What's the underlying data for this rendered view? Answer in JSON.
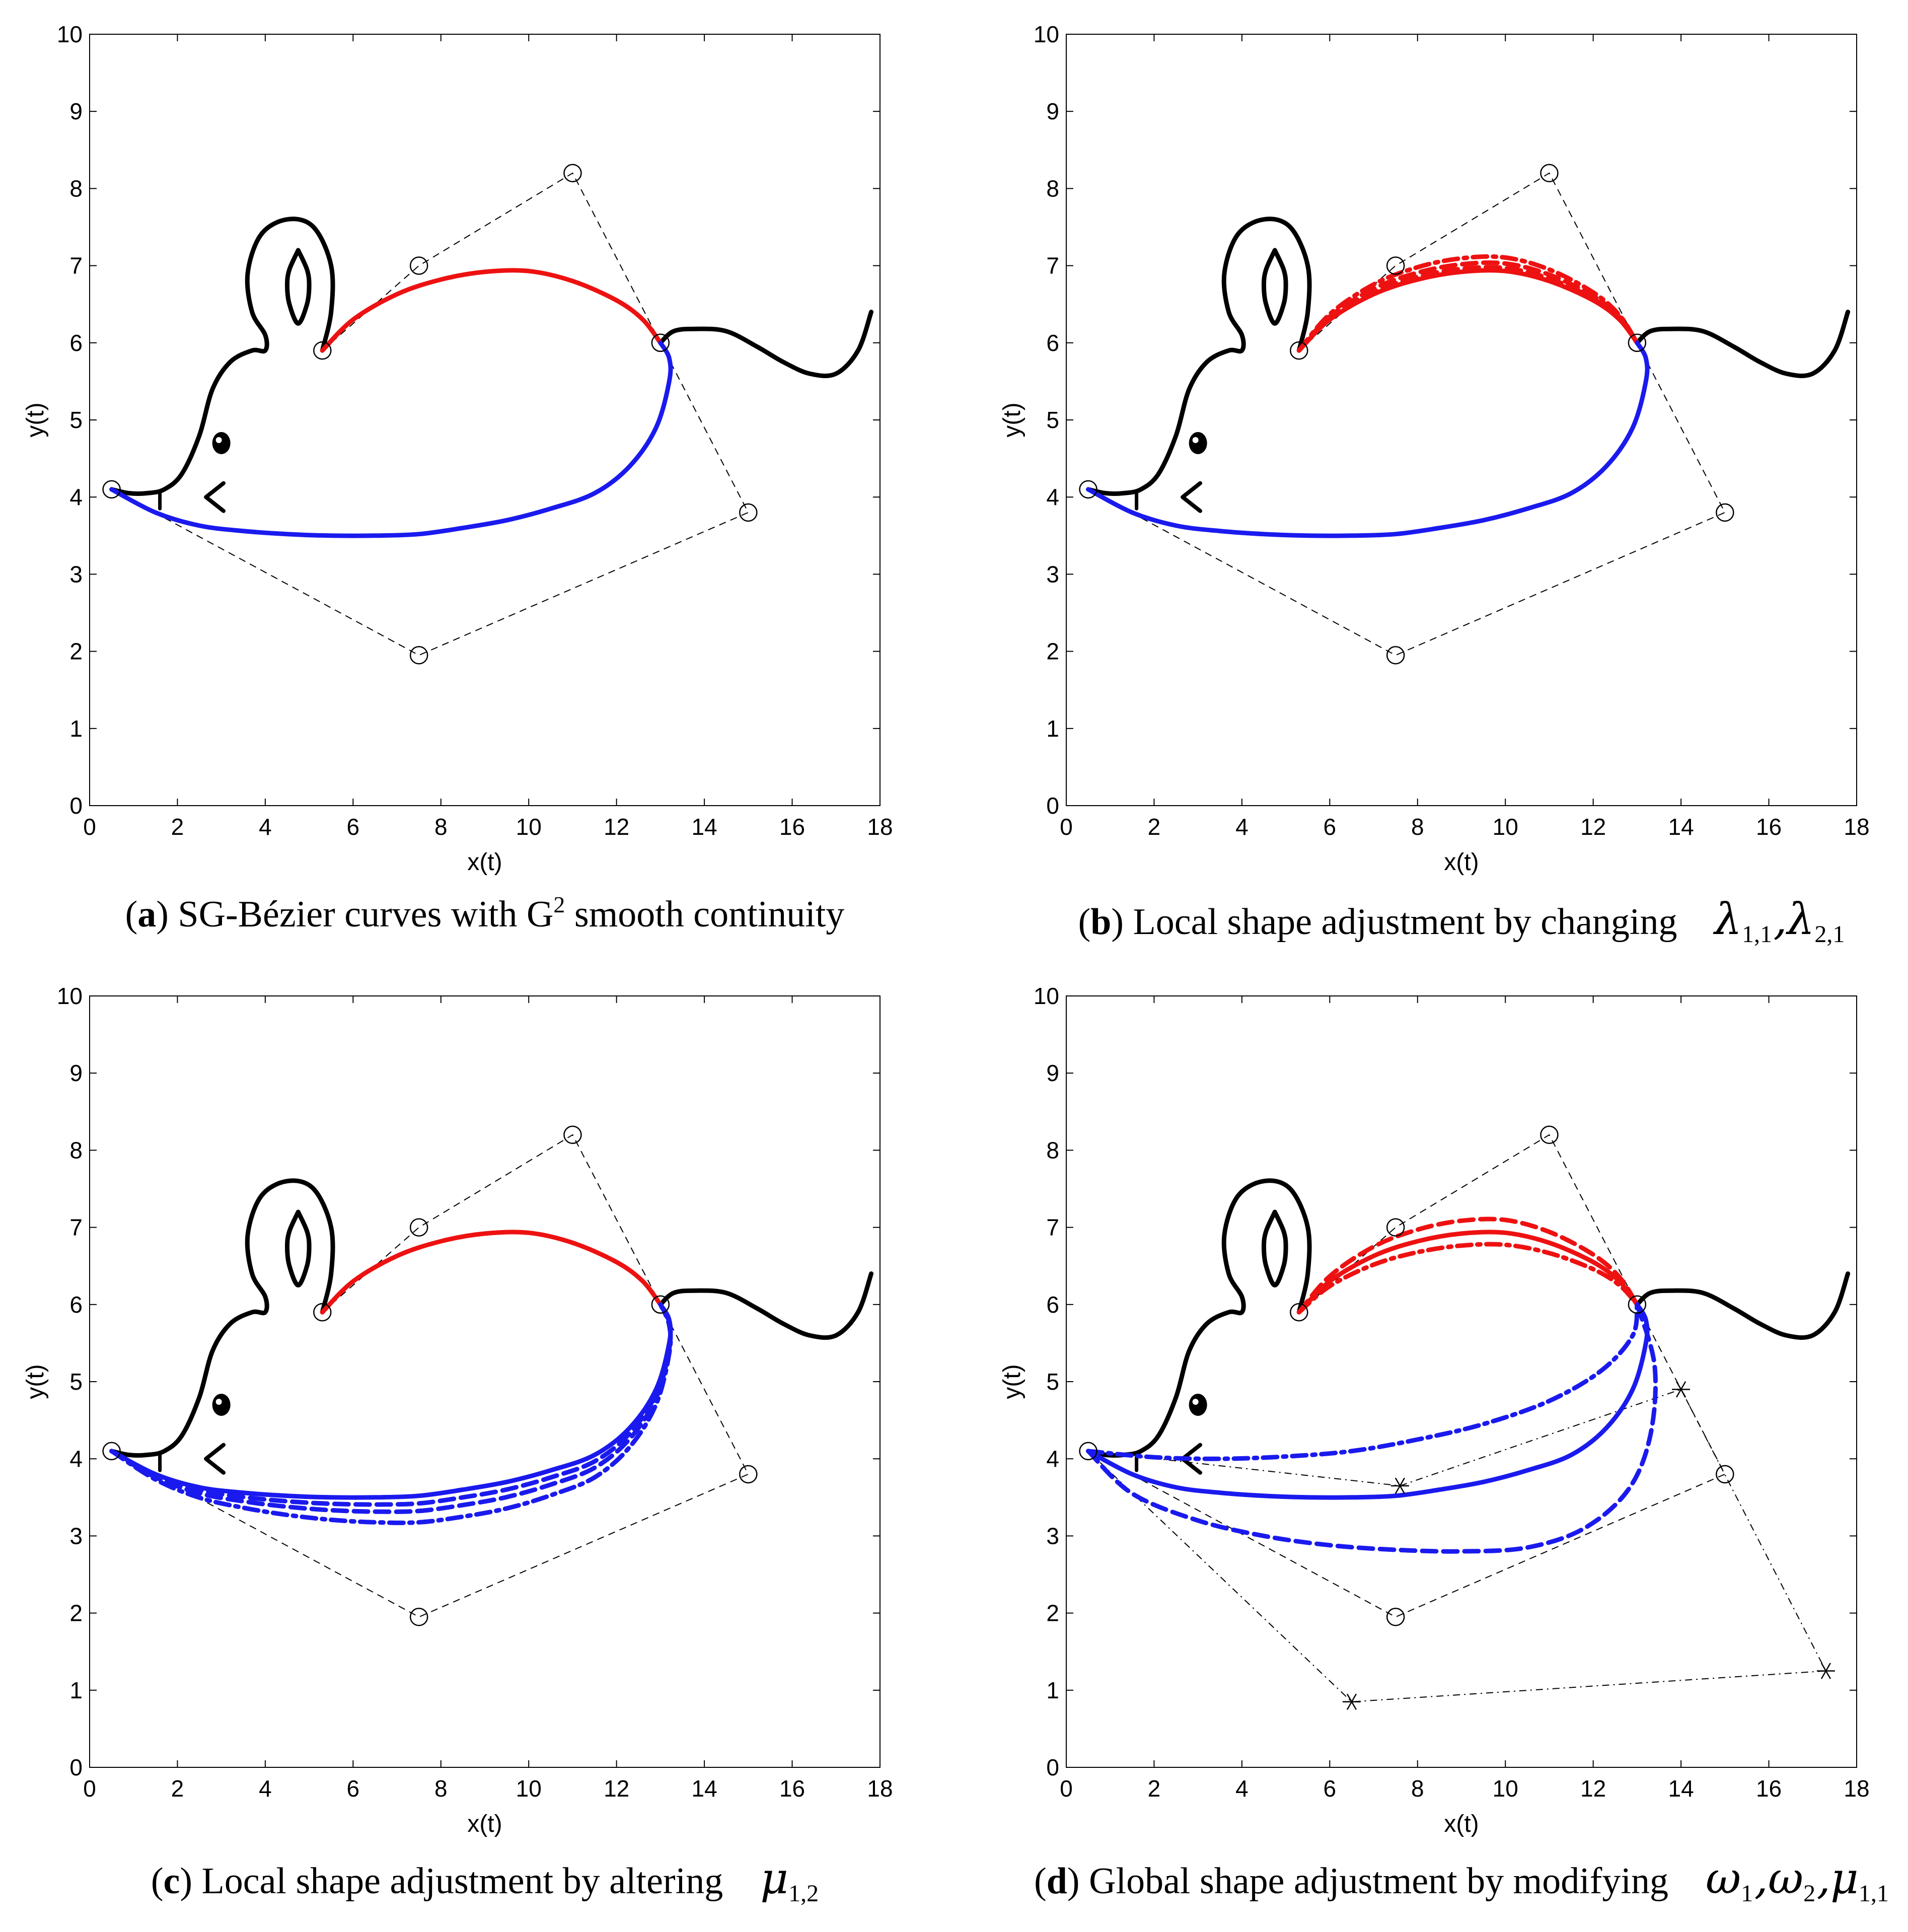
{
  "figure": {
    "panels_label": "SG-Bezier mouse figure"
  },
  "chart_data": [
    {
      "type": "line",
      "panel": "a",
      "caption_tag": "a",
      "caption_text": " SG-Bézier curves with G",
      "caption_sup": "2",
      "caption_tail": " smooth continuity",
      "xlabel": "x(t)",
      "ylabel": "y(t)",
      "xlim": [
        0,
        18
      ],
      "ylim": [
        0,
        10
      ],
      "xticks": [
        "0",
        "2",
        "4",
        "6",
        "8",
        "10",
        "12",
        "14",
        "16",
        "18"
      ],
      "yticks": [
        "0",
        "1",
        "2",
        "3",
        "4",
        "5",
        "6",
        "7",
        "8",
        "9",
        "10"
      ],
      "variant": "base"
    },
    {
      "type": "line",
      "panel": "b",
      "caption_tag": "b",
      "caption_text": " Local shape adjustment by changing",
      "caption_math": [
        {
          "sym": "λ",
          "sub": "1,1"
        },
        {
          "sym": ",",
          "sub": ""
        },
        {
          "sym": "λ",
          "sub": "2,1"
        }
      ],
      "xlabel": "x(t)",
      "ylabel": "y(t)",
      "xlim": [
        0,
        18
      ],
      "ylim": [
        0,
        10
      ],
      "xticks": [
        "0",
        "2",
        "4",
        "6",
        "8",
        "10",
        "12",
        "14",
        "16",
        "18"
      ],
      "yticks": [
        "0",
        "1",
        "2",
        "3",
        "4",
        "5",
        "6",
        "7",
        "8",
        "9",
        "10"
      ],
      "variant": "lambda"
    },
    {
      "type": "line",
      "panel": "c",
      "caption_tag": "c",
      "caption_text": " Local shape adjustment by altering",
      "caption_math": [
        {
          "sym": "μ",
          "sub": "1,2"
        }
      ],
      "xlabel": "x(t)",
      "ylabel": "y(t)",
      "xlim": [
        0,
        18
      ],
      "ylim": [
        0,
        10
      ],
      "xticks": [
        "0",
        "2",
        "4",
        "6",
        "8",
        "10",
        "12",
        "14",
        "16",
        "18"
      ],
      "yticks": [
        "0",
        "1",
        "2",
        "3",
        "4",
        "5",
        "6",
        "7",
        "8",
        "9",
        "10"
      ],
      "variant": "mu"
    },
    {
      "type": "line",
      "panel": "d",
      "caption_tag": "d",
      "caption_text": " Global shape adjustment by modifying",
      "caption_math": [
        {
          "sym": "ω",
          "sub": "1"
        },
        {
          "sym": ",",
          "sub": ""
        },
        {
          "sym": "ω",
          "sub": "2"
        },
        {
          "sym": ",",
          "sub": ""
        },
        {
          "sym": "μ",
          "sub": "1,1"
        }
      ],
      "xlabel": "x(t)",
      "ylabel": "y(t)",
      "xlim": [
        0,
        18
      ],
      "ylim": [
        0,
        10
      ],
      "xticks": [
        "0",
        "2",
        "4",
        "6",
        "8",
        "10",
        "12",
        "14",
        "16",
        "18"
      ],
      "yticks": [
        "0",
        "1",
        "2",
        "3",
        "4",
        "5",
        "6",
        "7",
        "8",
        "9",
        "10"
      ],
      "variant": "global"
    }
  ],
  "geometry_data": {
    "control_polygon_upper": [
      [
        5.3,
        5.9
      ],
      [
        7.5,
        7.0
      ],
      [
        11.0,
        8.2
      ],
      [
        13.0,
        6.0
      ]
    ],
    "control_polygon_lower": [
      [
        0.5,
        4.1
      ],
      [
        7.5,
        1.95
      ],
      [
        15.0,
        3.8
      ],
      [
        13.0,
        6.0
      ]
    ],
    "control_polygon_star": [
      [
        0.5,
        4.1
      ],
      [
        6.5,
        0.85
      ],
      [
        17.3,
        1.25
      ],
      [
        14.0,
        4.9
      ],
      [
        7.6,
        3.65
      ],
      [
        0.5,
        4.1
      ]
    ],
    "star_points": [
      [
        6.5,
        0.85
      ],
      [
        17.3,
        1.25
      ],
      [
        14.0,
        4.9
      ],
      [
        7.6,
        3.65
      ]
    ],
    "red_curve": [
      [
        5.3,
        5.9
      ],
      [
        6.0,
        6.3
      ],
      [
        7.0,
        6.63
      ],
      [
        8.0,
        6.82
      ],
      [
        9.0,
        6.92
      ],
      [
        10.0,
        6.93
      ],
      [
        11.0,
        6.8
      ],
      [
        12.0,
        6.55
      ],
      [
        12.6,
        6.3
      ],
      [
        13.0,
        6.0
      ]
    ],
    "blue_curve": [
      [
        0.5,
        4.1
      ],
      [
        1.5,
        3.8
      ],
      [
        2.5,
        3.63
      ],
      [
        3.5,
        3.56
      ],
      [
        4.5,
        3.52
      ],
      [
        5.5,
        3.5
      ],
      [
        6.5,
        3.5
      ],
      [
        7.5,
        3.52
      ],
      [
        8.5,
        3.6
      ],
      [
        9.5,
        3.7
      ],
      [
        10.5,
        3.85
      ],
      [
        11.5,
        4.05
      ],
      [
        12.3,
        4.4
      ],
      [
        12.9,
        4.9
      ],
      [
        13.2,
        5.5
      ],
      [
        13.2,
        5.8
      ],
      [
        13.0,
        6.0
      ]
    ],
    "mouse_outline": [
      [
        0.5,
        4.1
      ],
      [
        0.9,
        4.05
      ],
      [
        1.3,
        4.05
      ],
      [
        1.7,
        4.1
      ],
      [
        2.1,
        4.3
      ],
      [
        2.5,
        4.8
      ],
      [
        2.8,
        5.4
      ],
      [
        3.2,
        5.75
      ],
      [
        3.7,
        5.9
      ],
      [
        4.0,
        5.9
      ],
      [
        4.0,
        6.1
      ],
      [
        3.7,
        6.4
      ],
      [
        3.6,
        6.9
      ],
      [
        3.9,
        7.4
      ],
      [
        4.5,
        7.6
      ],
      [
        5.1,
        7.5
      ],
      [
        5.5,
        7.0
      ],
      [
        5.5,
        6.4
      ],
      [
        5.3,
        5.9
      ]
    ],
    "ear_inner": [
      [
        4.75,
        7.2
      ],
      [
        4.95,
        6.95
      ],
      [
        5.0,
        6.75
      ],
      [
        4.95,
        6.5
      ],
      [
        4.75,
        6.25
      ],
      [
        4.55,
        6.5
      ],
      [
        4.5,
        6.75
      ],
      [
        4.55,
        6.95
      ],
      [
        4.75,
        7.2
      ]
    ],
    "tail": [
      [
        13.0,
        6.0
      ],
      [
        13.3,
        6.15
      ],
      [
        13.8,
        6.18
      ],
      [
        14.5,
        6.15
      ],
      [
        15.2,
        5.95
      ],
      [
        15.8,
        5.75
      ],
      [
        16.4,
        5.6
      ],
      [
        17.0,
        5.6
      ],
      [
        17.5,
        5.9
      ],
      [
        17.8,
        6.4
      ]
    ],
    "mouth_tick": [
      [
        1.6,
        4.08
      ],
      [
        1.6,
        3.85
      ]
    ],
    "nose_arrow": [
      [
        3.05,
        4.18
      ],
      [
        2.65,
        4.0
      ],
      [
        3.05,
        3.82
      ]
    ],
    "eye": [
      3.0,
      4.7
    ]
  }
}
